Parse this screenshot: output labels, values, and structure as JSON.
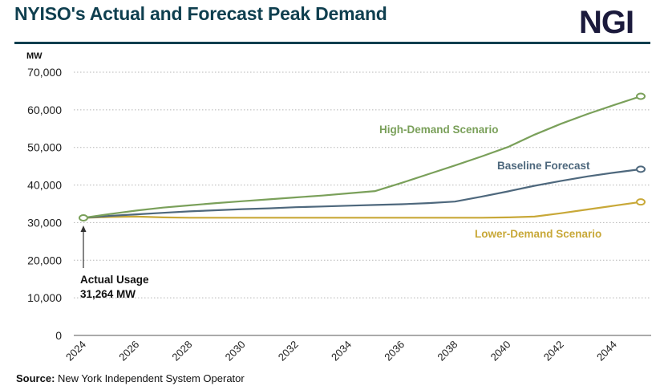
{
  "header": {
    "title": "NYISO's Actual and Forecast Peak Demand",
    "logo": "NGI"
  },
  "source": {
    "label": "Source:",
    "text": "New York Independent System Operator"
  },
  "chart_data": {
    "type": "line",
    "title": "NYISO's Actual and Forecast Peak Demand",
    "ylabel": "MW",
    "ylim": [
      0,
      70000
    ],
    "yticks": [
      "0",
      "10,000",
      "20,000",
      "30,000",
      "40,000",
      "50,000",
      "60,000",
      "70,000"
    ],
    "ytick_values": [
      0,
      10000,
      20000,
      30000,
      40000,
      50000,
      60000,
      70000
    ],
    "xticks": [
      "2024",
      "2026",
      "2028",
      "2030",
      "2032",
      "2034",
      "2036",
      "2038",
      "2040",
      "2042",
      "2044"
    ],
    "xlim": [
      2024,
      2045
    ],
    "grid": "horizontal dotted",
    "x": [
      2024,
      2025,
      2026,
      2027,
      2028,
      2029,
      2030,
      2031,
      2032,
      2033,
      2034,
      2035,
      2036,
      2037,
      2038,
      2039,
      2040,
      2041,
      2042,
      2043,
      2044,
      2045
    ],
    "series": [
      {
        "name": "High-Demand Scenario",
        "color": "#7aa05a",
        "values": [
          31264,
          32300,
          33200,
          34000,
          34600,
          35200,
          35700,
          36200,
          36700,
          37200,
          37800,
          38400,
          40600,
          42900,
          45200,
          47600,
          50100,
          53400,
          56300,
          58900,
          61300,
          63600
        ]
      },
      {
        "name": "Baseline Forecast",
        "color": "#4e687d",
        "values": [
          31264,
          31800,
          32200,
          32600,
          33000,
          33300,
          33600,
          33800,
          34100,
          34300,
          34500,
          34700,
          34900,
          35200,
          35600,
          36900,
          38300,
          39800,
          41100,
          42300,
          43300,
          44200
        ]
      },
      {
        "name": "Lower-Demand Scenario",
        "color": "#c8a838",
        "values": [
          31264,
          31500,
          31600,
          31400,
          31300,
          31300,
          31300,
          31300,
          31300,
          31300,
          31300,
          31300,
          31300,
          31300,
          31300,
          31300,
          31400,
          31600,
          32500,
          33500,
          34500,
          35500
        ]
      }
    ],
    "annotations": [
      {
        "text_line1": "Actual Usage",
        "text_line2": "31,264 MW",
        "x": 2024,
        "y": 31264
      }
    ]
  }
}
